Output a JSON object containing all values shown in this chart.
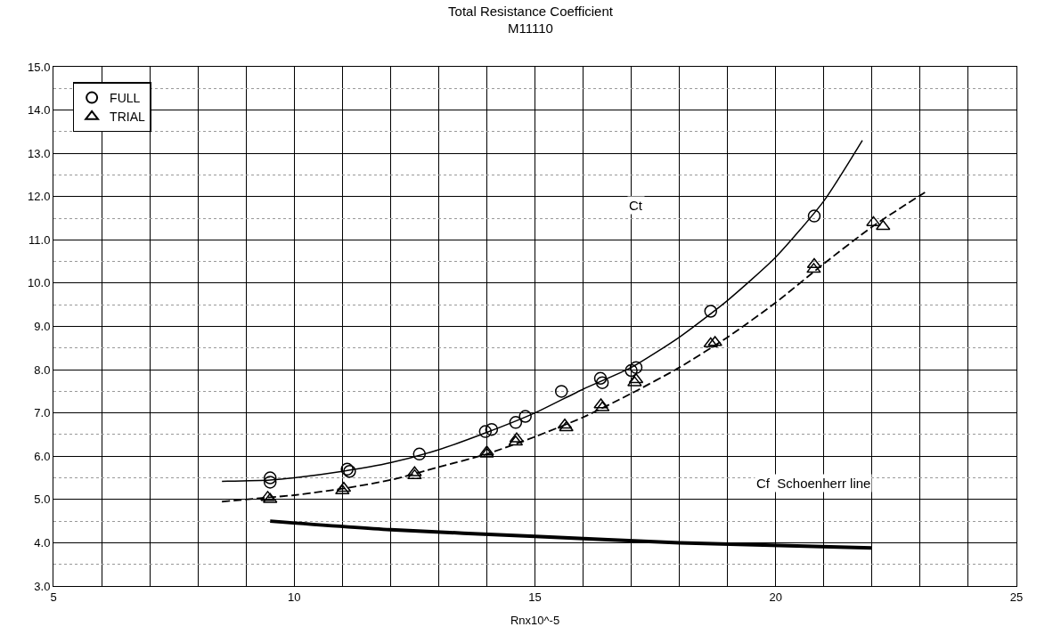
{
  "chart_data": {
    "type": "scatter",
    "title": "Total Resistance Coefficient",
    "subtitle": "M11110",
    "xlabel": "Rnx10^-5",
    "xlim": [
      5,
      25
    ],
    "xticks": [
      5,
      10,
      15,
      20,
      25
    ],
    "ylim": [
      3,
      15
    ],
    "yticks": [
      {
        "value": 3,
        "label": "3.0"
      },
      {
        "value": 4,
        "label": "4.0"
      },
      {
        "value": 5,
        "label": "5.0"
      },
      {
        "value": 6,
        "label": "6.0"
      },
      {
        "value": 7,
        "label": "7.0"
      },
      {
        "value": 8,
        "label": "8.0"
      },
      {
        "value": 9,
        "label": "9.0"
      },
      {
        "value": 10,
        "label": "10.0"
      },
      {
        "value": 11,
        "label": "11.0"
      },
      {
        "value": 12,
        "label": "12.0"
      },
      {
        "value": 13,
        "label": "13.0"
      },
      {
        "value": 14,
        "label": "14.0"
      },
      {
        "value": 15,
        "label": "15.0"
      }
    ],
    "grid": true,
    "legend": "top left",
    "series": [
      {
        "name": "FULL",
        "color": "#000000",
        "marker": "circle",
        "x": [
          9.5,
          9.5,
          11.1,
          11.15,
          12.6,
          13.97,
          14.1,
          14.6,
          14.8,
          15.55,
          16.36,
          16.4,
          17.0,
          17.1,
          18.65,
          20.8
        ],
        "values": [
          5.5,
          5.4,
          5.7,
          5.65,
          6.05,
          6.57,
          6.62,
          6.78,
          6.92,
          7.5,
          7.8,
          7.7,
          7.98,
          8.05,
          9.35,
          11.55
        ]
      },
      {
        "name": "TRIAL",
        "color": "#000000",
        "marker": "triangle",
        "x": [
          9.45,
          9.5,
          11.0,
          11.03,
          12.5,
          12.5,
          14.0,
          14.0,
          14.6,
          14.62,
          15.62,
          15.65,
          16.37,
          16.4,
          17.07,
          17.1,
          18.65,
          18.74,
          20.79,
          20.8,
          22.03,
          22.23
        ],
        "values": [
          5.05,
          5.0,
          5.2,
          5.26,
          5.55,
          5.62,
          6.05,
          6.1,
          6.33,
          6.4,
          6.72,
          6.66,
          7.19,
          7.12,
          7.7,
          7.77,
          8.6,
          8.63,
          10.32,
          10.43,
          11.4,
          11.31
        ]
      },
      {
        "type": "line",
        "color": "#000000",
        "line_style": "solid",
        "x": [
          8.5,
          9.5,
          10,
          11,
          12,
          13,
          14,
          15,
          16,
          17,
          18,
          19,
          20,
          21,
          21.8
        ],
        "values": [
          5.42,
          5.45,
          5.5,
          5.65,
          5.85,
          6.15,
          6.55,
          7.0,
          7.55,
          8.05,
          8.75,
          9.6,
          10.6,
          11.9,
          13.3
        ]
      },
      {
        "type": "line",
        "color": "#000000",
        "line_style": "dashed",
        "x": [
          8.5,
          9.5,
          10,
          11,
          12,
          13,
          14,
          15,
          16,
          17,
          18,
          19,
          20,
          21,
          22,
          23.1
        ],
        "values": [
          4.95,
          5.05,
          5.1,
          5.25,
          5.45,
          5.75,
          6.05,
          6.45,
          6.9,
          7.45,
          8.05,
          8.75,
          9.55,
          10.45,
          11.3,
          12.1
        ]
      },
      {
        "type": "line",
        "color": "#000000",
        "line_style": "solid",
        "x": [
          9.5,
          12,
          15,
          18,
          22
        ],
        "values": [
          4.5,
          4.3,
          4.15,
          4.0,
          3.88
        ]
      }
    ],
    "annotations": [
      {
        "text": "Ct",
        "x": 17.1,
        "y": 11.8
      },
      "Cf  Schoenherr line"
    ]
  }
}
